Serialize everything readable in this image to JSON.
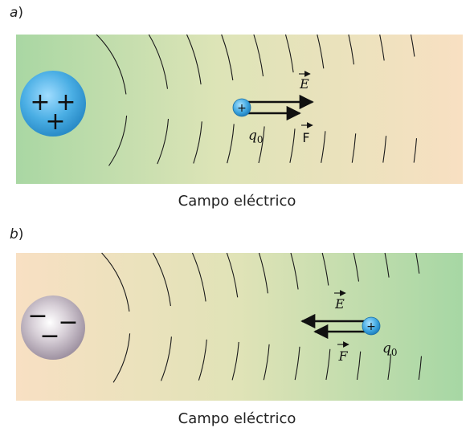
{
  "panel_a": {
    "label_letter": "a",
    "label_paren": ")",
    "caption": "Campo eléctrico",
    "source_sign": "+",
    "test_charge_sign": "+",
    "vector_E": "E",
    "vector_F": "F",
    "charge_label": "q",
    "charge_subscript": "0"
  },
  "panel_b": {
    "label_letter": "b",
    "label_paren": ")",
    "caption": "Campo eléctrico",
    "source_sign": "−",
    "test_charge_sign": "+",
    "vector_E": "E",
    "vector_F": "F",
    "charge_label": "q",
    "charge_subscript": "0"
  },
  "colors": {
    "green": "#a9d7a3",
    "cream": "#f6e4c9",
    "peach": "#f7dcbf",
    "positive_sphere": "#4aaee4",
    "negative_sphere": "#b8adbb",
    "lines": "#1a1a1a"
  }
}
